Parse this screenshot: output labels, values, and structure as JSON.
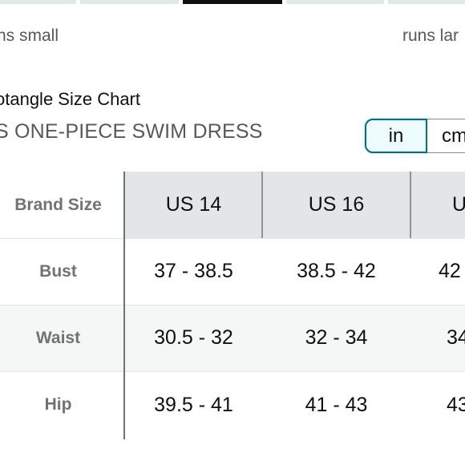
{
  "fit_scale": {
    "segments": [
      {
        "state": "inactive"
      },
      {
        "state": "inactive"
      },
      {
        "state": "active"
      },
      {
        "state": "inactive"
      },
      {
        "state": "inactive"
      }
    ],
    "left_label": "ns small",
    "right_label": "runs lar"
  },
  "chart": {
    "title": "otangle Size Chart",
    "product": "S ONE-PIECE SWIM DRESS"
  },
  "units": {
    "options": [
      "in",
      "cm"
    ],
    "selected": "in"
  },
  "table": {
    "header_label": "Brand Size",
    "columns": [
      "US 14",
      "US 16",
      "U"
    ],
    "rows": [
      {
        "label": "Bust",
        "values": [
          "37 - 38.5",
          "38.5 - 42",
          "42"
        ]
      },
      {
        "label": "Waist",
        "values": [
          "30.5 - 32",
          "32 - 34",
          "34"
        ]
      },
      {
        "label": "Hip",
        "values": [
          "39.5 - 41",
          "41 - 43",
          "43"
        ]
      }
    ]
  },
  "colors": {
    "active_segment": "#0f1111",
    "inactive_segment": "#e3e6e6",
    "selected_unit_border": "#007185",
    "header_bg": "#e3e6e6"
  }
}
